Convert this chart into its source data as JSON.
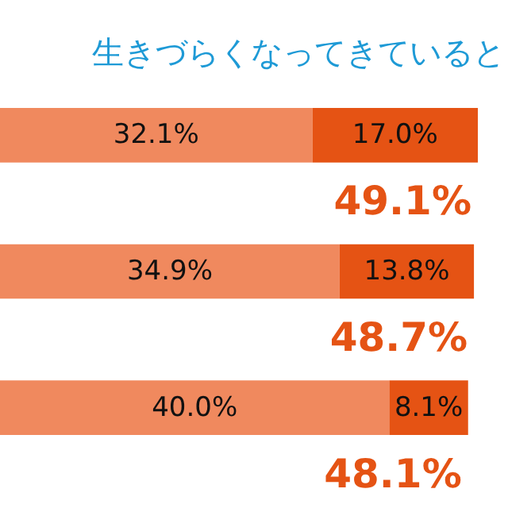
{
  "chart_data": {
    "type": "bar",
    "orientation": "horizontal",
    "stacked": true,
    "title": "生きづらくなってきていると",
    "categories": [
      null,
      null,
      null
    ],
    "series": [
      {
        "color": "#f0895e",
        "values": [
          32.1,
          34.9,
          40.0
        ],
        "value_labels": [
          "32.1%",
          "34.9%",
          "40.0%"
        ]
      },
      {
        "color": "#e55314",
        "values": [
          17.0,
          13.8,
          8.1
        ],
        "value_labels": [
          "17.0%",
          "13.8%",
          "8.1%"
        ]
      }
    ],
    "totals": [
      "49.1%",
      "48.7%",
      "48.1%"
    ],
    "legend": false,
    "tick_labels": false
  }
}
